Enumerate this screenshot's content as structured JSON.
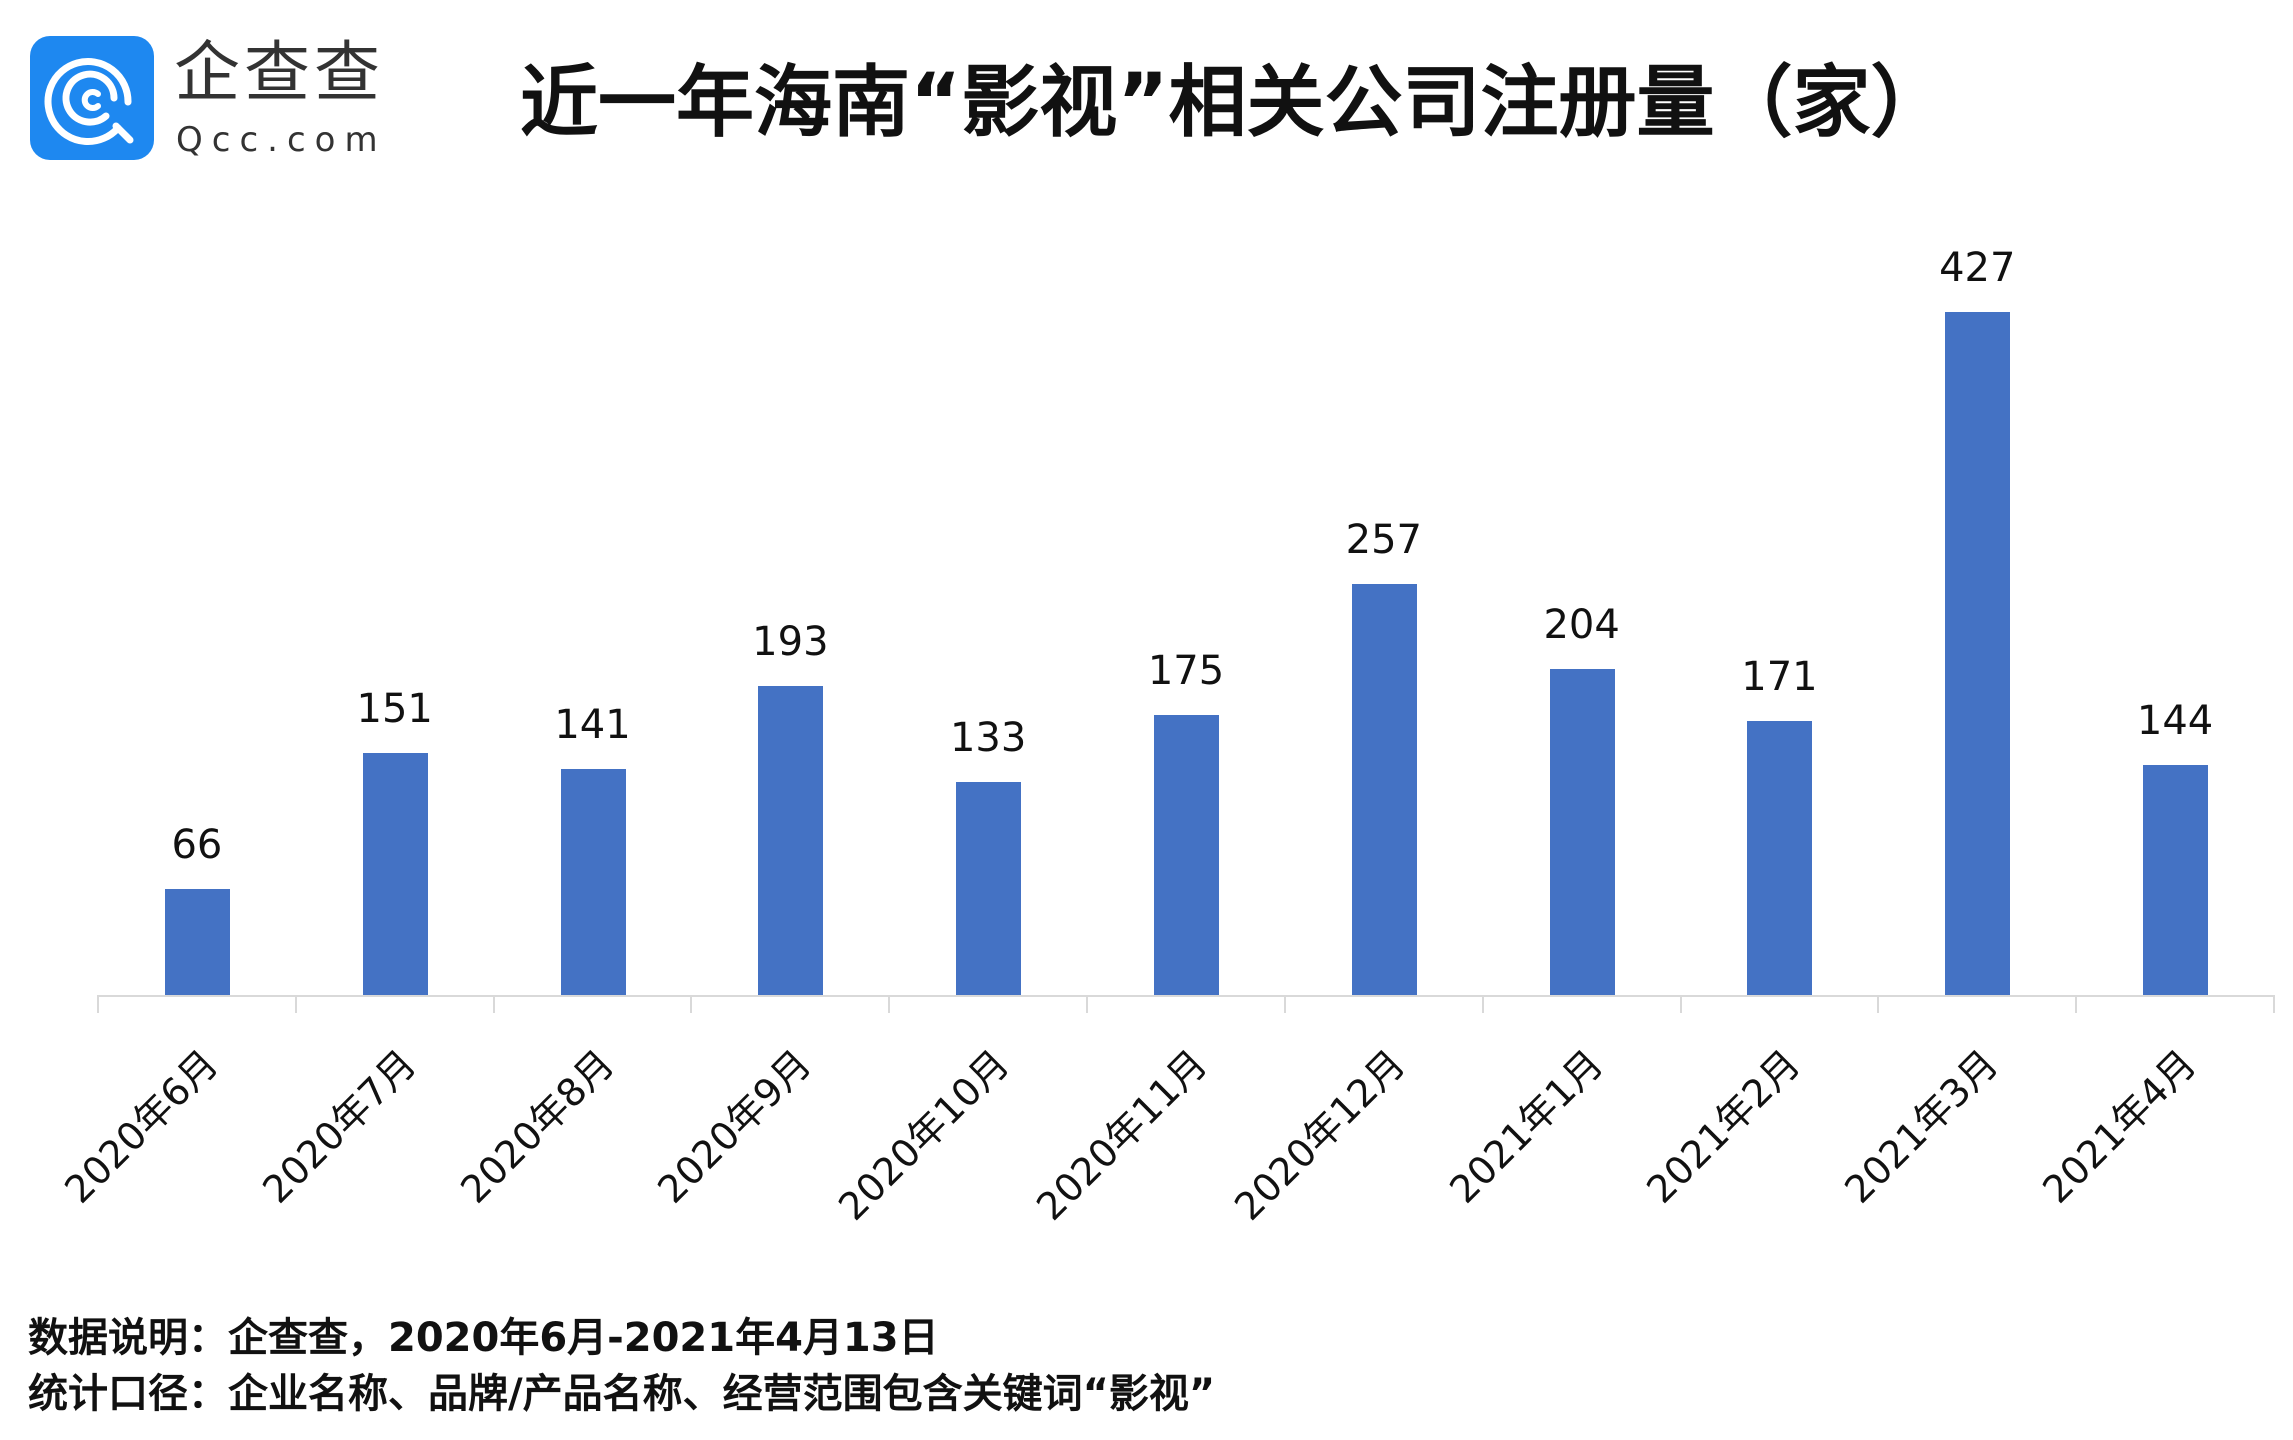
{
  "brand": {
    "name_cn": "企查查",
    "name_en": "Qcc.com",
    "logo_icon": "qcc-logo-icon",
    "logo_color": "#1E88F0"
  },
  "title": "近一年海南“影视”相关公司注册量（家）",
  "chart_data": {
    "type": "bar",
    "title": "近一年海南“影视”相关公司注册量（家）",
    "xlabel": "",
    "ylabel": "",
    "categories": [
      "2020年6月",
      "2020年7月",
      "2020年8月",
      "2020年9月",
      "2020年10月",
      "2020年11月",
      "2020年12月",
      "2021年1月",
      "2021年2月",
      "2021年3月",
      "2021年4月"
    ],
    "values": [
      66,
      151,
      141,
      193,
      133,
      175,
      257,
      204,
      171,
      427,
      144
    ],
    "ylim": [
      0,
      440
    ],
    "grid": false,
    "legend": "none",
    "data_labels": true,
    "bar_color": "#4472C4",
    "xtick_rotation": -45
  },
  "labels": {
    "values": [
      "66",
      "151",
      "141",
      "193",
      "133",
      "175",
      "257",
      "204",
      "171",
      "427",
      "144"
    ],
    "categories": [
      "2020年6月",
      "2020年7月",
      "2020年8月",
      "2020年9月",
      "2020年10月",
      "2020年11月",
      "2020年12月",
      "2021年1月",
      "2021年2月",
      "2021年3月",
      "2021年4月"
    ]
  },
  "footer": {
    "source": "数据说明：企查查，2020年6月-2021年4月13日",
    "scope": "统计口径：企业名称、品牌/产品名称、经营范围包含关键词“影视”"
  }
}
